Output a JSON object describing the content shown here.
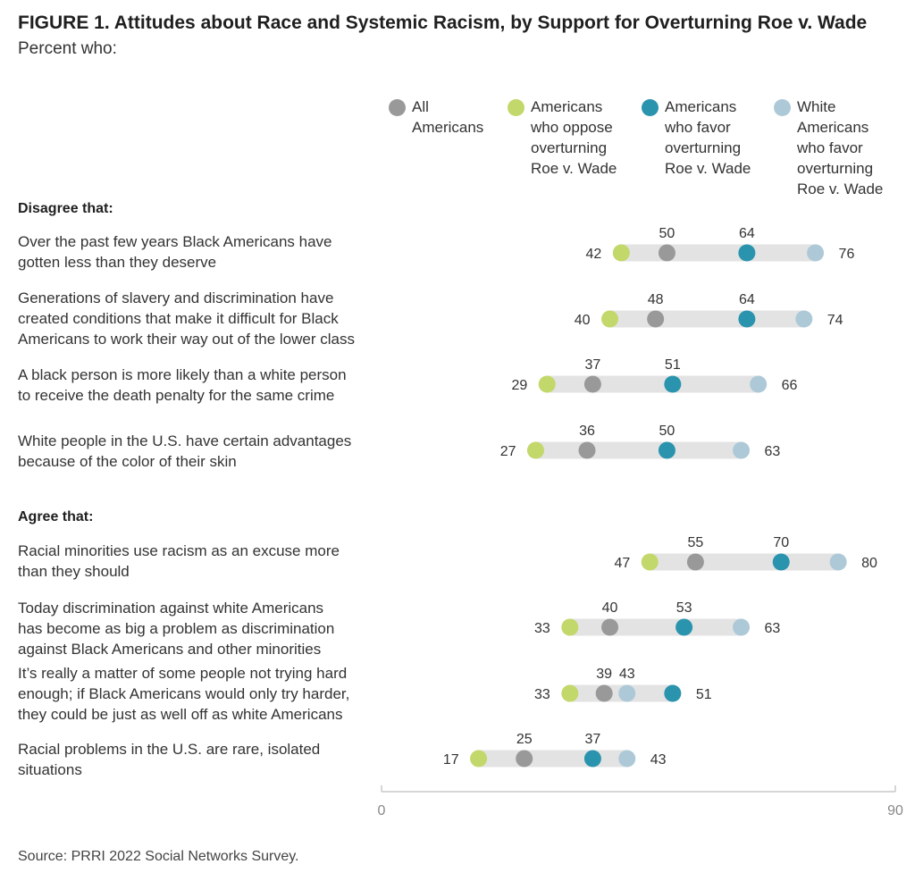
{
  "title": "FIGURE 1.  Attitudes about Race and Systemic Racism, by Support for Overturning Roe v. Wade",
  "subtitle": "Percent who:",
  "legend": [
    {
      "label": "All Americans",
      "lines": [
        "All",
        "Americans"
      ],
      "color": "#999999"
    },
    {
      "label": "Americans who oppose overturning Roe v. Wade",
      "lines": [
        "Americans",
        "who oppose",
        "overturning",
        "Roe v. Wade"
      ],
      "color": "#c2d86a"
    },
    {
      "label": "Americans who favor overturning Roe v. Wade",
      "lines": [
        "Americans",
        "who favor",
        "overturning",
        "Roe v. Wade"
      ],
      "color": "#2a93ad"
    },
    {
      "label": "White Americans who favor overturning Roe v. Wade",
      "lines": [
        "White",
        "Americans",
        "who favor",
        "overturning",
        "Roe v. Wade"
      ],
      "color": "#adc9d8"
    }
  ],
  "sections": {
    "disagree": "Disagree that:",
    "agree": "Agree that:"
  },
  "source": "Source: PRRI 2022 Social Networks Survey.",
  "chart_data": {
    "type": "scatter",
    "subtype": "dot-plot",
    "title": "FIGURE 1.  Attitudes about Race and Systemic Racism, by Support for Overturning Roe v. Wade",
    "subtitle": "Percent who:",
    "xlim": [
      0,
      90
    ],
    "x_ticks": [
      0,
      90
    ],
    "grid": false,
    "legend_position": "top-right",
    "series_names": [
      "All Americans",
      "Americans who oppose overturning Roe v. Wade",
      "Americans who favor overturning Roe v. Wade",
      "White Americans who favor overturning Roe v. Wade"
    ],
    "rows": [
      {
        "section": "Disagree that:",
        "lines": [
          "Over the past few years Black Americans have",
          "gotten less than they deserve"
        ],
        "all": 50,
        "oppose": 42,
        "favor": 64,
        "white_favor": 76
      },
      {
        "section": "Disagree that:",
        "lines": [
          "Generations of slavery and discrimination have",
          "created conditions that make it difficult for Black",
          "Americans to work their way out of the lower class"
        ],
        "all": 48,
        "oppose": 40,
        "favor": 64,
        "white_favor": 74
      },
      {
        "section": "Disagree that:",
        "lines": [
          "A black person is more likely than a white person",
          "to receive the death penalty for the same crime"
        ],
        "all": 37,
        "oppose": 29,
        "favor": 51,
        "white_favor": 66
      },
      {
        "section": "Disagree that:",
        "lines": [
          "White people in the U.S. have certain advantages",
          "because of the color of their skin"
        ],
        "all": 36,
        "oppose": 27,
        "favor": 50,
        "white_favor": 63
      },
      {
        "section": "Agree that:",
        "lines": [
          "Racial minorities use racism as an excuse more",
          "than they should"
        ],
        "all": 55,
        "oppose": 47,
        "favor": 70,
        "white_favor": 80
      },
      {
        "section": "Agree that:",
        "lines": [
          "Today discrimination against white Americans",
          "has become as big a problem as discrimination",
          "against Black Americans and other minorities"
        ],
        "all": 40,
        "oppose": 33,
        "favor": 53,
        "white_favor": 63
      },
      {
        "section": "Agree that:",
        "lines": [
          "It’s really a matter of some people not trying hard",
          "enough; if Black Americans would only try harder,",
          "they could be just as well off as white Americans"
        ],
        "all": 39,
        "oppose": 33,
        "favor": 51,
        "white_favor": 43
      },
      {
        "section": "Agree that:",
        "lines": [
          "Racial problems in the U.S. are rare, isolated",
          "situations"
        ],
        "all": 25,
        "oppose": 17,
        "favor": 37,
        "white_favor": 43
      }
    ]
  }
}
